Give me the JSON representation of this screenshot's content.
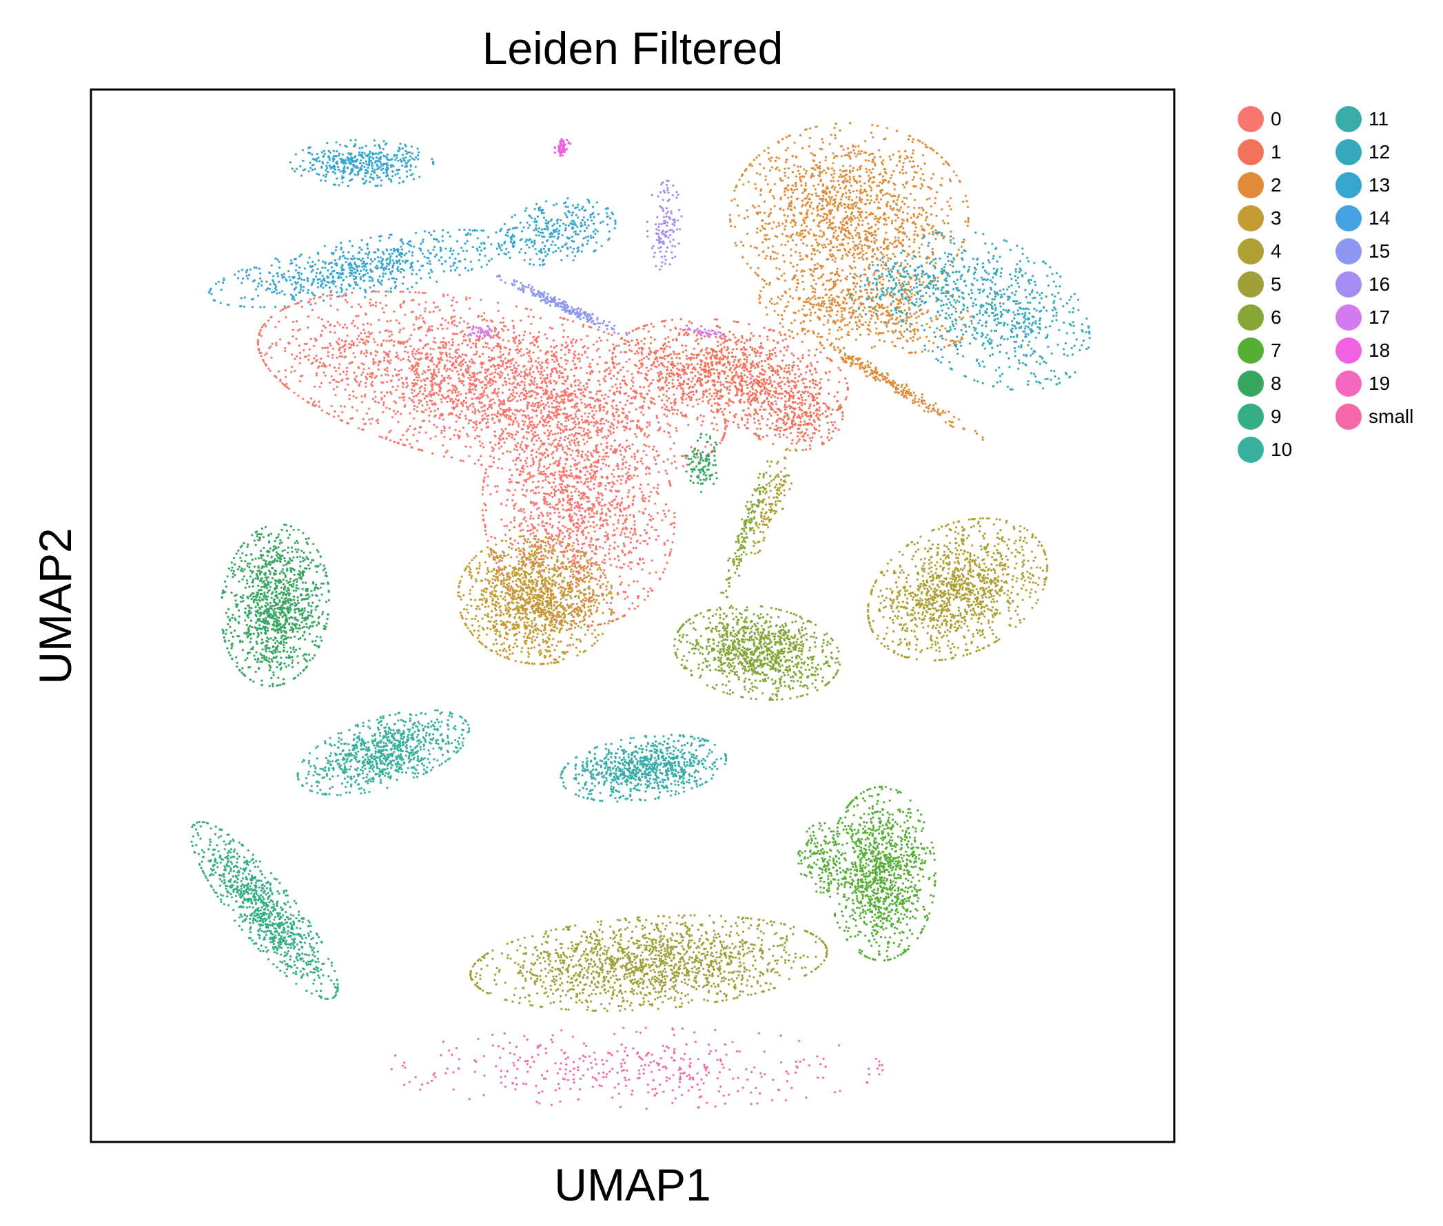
{
  "chart_data": {
    "type": "scatter",
    "title": "Leiden Filtered",
    "xlabel": "UMAP1",
    "ylabel": "UMAP2",
    "ticks": "none",
    "grid": false,
    "legend_position": "outside-right",
    "legend_columns": 2,
    "xlim": [
      -10,
      10
    ],
    "ylim": [
      -10,
      10
    ],
    "series": [
      {
        "name": "0",
        "color": "#F8766D",
        "clusters": [
          {
            "cx": -2.6,
            "cy": 4.4,
            "rx": 4.0,
            "ry": 1.4,
            "rot": -12,
            "n": 2600
          },
          {
            "cx": -1.0,
            "cy": 2.0,
            "rx": 1.6,
            "ry": 2.0,
            "rot": 10,
            "n": 1400
          }
        ]
      },
      {
        "name": "1",
        "color": "#F2735A",
        "clusters": [
          {
            "cx": 1.8,
            "cy": 4.6,
            "rx": 2.0,
            "ry": 0.9,
            "rot": -10,
            "n": 1100
          },
          {
            "cx": 3.0,
            "cy": 3.8,
            "rx": 0.8,
            "ry": 0.6,
            "rot": 0,
            "n": 250
          }
        ]
      },
      {
        "name": "2",
        "color": "#E08B37",
        "clusters": [
          {
            "cx": 4.0,
            "cy": 7.6,
            "rx": 2.0,
            "ry": 1.6,
            "rot": 0,
            "n": 1400
          },
          {
            "cx": 4.3,
            "cy": 5.8,
            "rx": 1.8,
            "ry": 0.7,
            "rot": -8,
            "n": 500
          },
          {
            "cx": 4.8,
            "cy": 4.4,
            "rx": 1.8,
            "ry": 0.12,
            "rot": -32,
            "n": 220
          }
        ]
      },
      {
        "name": "3",
        "color": "#C49A33",
        "clusters": [
          {
            "cx": -1.8,
            "cy": 0.3,
            "rx": 1.3,
            "ry": 1.1,
            "rot": -10,
            "n": 1300
          }
        ]
      },
      {
        "name": "4",
        "color": "#AFA033",
        "clusters": [
          {
            "cx": 6.0,
            "cy": 0.5,
            "rx": 1.6,
            "ry": 1.1,
            "rot": 28,
            "n": 1200
          },
          {
            "cx": 2.6,
            "cy": 2.2,
            "rx": 0.2,
            "ry": 1.0,
            "rot": -20,
            "n": 120
          }
        ]
      },
      {
        "name": "5",
        "color": "#A0A03A",
        "clusters": [
          {
            "cx": 0.3,
            "cy": -6.6,
            "rx": 3.0,
            "ry": 0.8,
            "rot": 4,
            "n": 1500
          }
        ]
      },
      {
        "name": "6",
        "color": "#86A637",
        "clusters": [
          {
            "cx": 2.3,
            "cy": -0.7,
            "rx": 1.4,
            "ry": 0.8,
            "rot": -8,
            "n": 1000
          },
          {
            "cx": 2.1,
            "cy": 1.6,
            "rx": 0.15,
            "ry": 1.3,
            "rot": -18,
            "n": 150
          }
        ]
      },
      {
        "name": "7",
        "color": "#56AF35",
        "clusters": [
          {
            "cx": 4.6,
            "cy": -4.9,
            "rx": 0.9,
            "ry": 1.5,
            "rot": 0,
            "n": 1100
          },
          {
            "cx": 3.5,
            "cy": -4.6,
            "rx": 0.4,
            "ry": 0.6,
            "rot": 0,
            "n": 150
          }
        ]
      },
      {
        "name": "8",
        "color": "#36A660",
        "clusters": [
          {
            "cx": -6.6,
            "cy": 0.2,
            "rx": 0.9,
            "ry": 1.4,
            "rot": -5,
            "n": 1100
          },
          {
            "cx": 1.3,
            "cy": 2.9,
            "rx": 0.3,
            "ry": 0.5,
            "rot": 0,
            "n": 100
          }
        ]
      },
      {
        "name": "9",
        "color": "#35AE88",
        "clusters": [
          {
            "cx": -6.8,
            "cy": -5.6,
            "rx": 1.9,
            "ry": 0.5,
            "rot": -52,
            "n": 900
          }
        ]
      },
      {
        "name": "10",
        "color": "#37B09D",
        "clusters": [
          {
            "cx": -4.6,
            "cy": -2.6,
            "rx": 1.5,
            "ry": 0.6,
            "rot": 18,
            "n": 800
          }
        ]
      },
      {
        "name": "11",
        "color": "#37ACA9",
        "clusters": [
          {
            "cx": 0.2,
            "cy": -2.9,
            "rx": 1.4,
            "ry": 0.55,
            "rot": 8,
            "n": 800
          }
        ]
      },
      {
        "name": "12",
        "color": "#33A9BB",
        "clusters": [
          {
            "cx": 6.6,
            "cy": 5.8,
            "rx": 1.8,
            "ry": 1.2,
            "rot": -30,
            "n": 700
          },
          {
            "cx": 5.0,
            "cy": 6.2,
            "rx": 0.9,
            "ry": 0.6,
            "rot": 0,
            "n": 150
          }
        ]
      },
      {
        "name": "13",
        "color": "#35A6D0",
        "clusters": [
          {
            "cx": -5.0,
            "cy": 6.6,
            "rx": 2.6,
            "ry": 0.5,
            "rot": 10,
            "n": 650
          },
          {
            "cx": -5.0,
            "cy": 8.6,
            "rx": 1.2,
            "ry": 0.4,
            "rot": 0,
            "n": 400
          },
          {
            "cx": -1.4,
            "cy": 7.3,
            "rx": 1.0,
            "ry": 0.55,
            "rot": 12,
            "n": 300
          }
        ]
      },
      {
        "name": "14",
        "color": "#45A2E2",
        "clusters": []
      },
      {
        "name": "15",
        "color": "#8C98F0",
        "clusters": [
          {
            "cx": -1.3,
            "cy": 5.9,
            "rx": 1.2,
            "ry": 0.1,
            "rot": -25,
            "n": 200
          }
        ]
      },
      {
        "name": "16",
        "color": "#A58CF2",
        "clusters": [
          {
            "cx": 0.6,
            "cy": 7.4,
            "rx": 0.3,
            "ry": 0.8,
            "rot": 0,
            "n": 120
          }
        ]
      },
      {
        "name": "17",
        "color": "#D37AEE",
        "clusters": [
          {
            "cx": -2.8,
            "cy": 5.4,
            "rx": 0.3,
            "ry": 0.1,
            "rot": 0,
            "n": 40
          },
          {
            "cx": 1.3,
            "cy": 5.4,
            "rx": 0.4,
            "ry": 0.08,
            "rot": -10,
            "n": 40
          }
        ]
      },
      {
        "name": "18",
        "color": "#F062E2",
        "clusters": [
          {
            "cx": -1.3,
            "cy": 8.9,
            "rx": 0.15,
            "ry": 0.15,
            "rot": 0,
            "n": 60
          }
        ]
      },
      {
        "name": "19",
        "color": "#F367BE",
        "clusters": []
      },
      {
        "name": "small",
        "color": "#F667A7",
        "clusters": [
          {
            "cx": 0.0,
            "cy": -8.6,
            "rx": 4.2,
            "ry": 0.7,
            "rot": 0,
            "n": 380
          }
        ]
      }
    ]
  }
}
